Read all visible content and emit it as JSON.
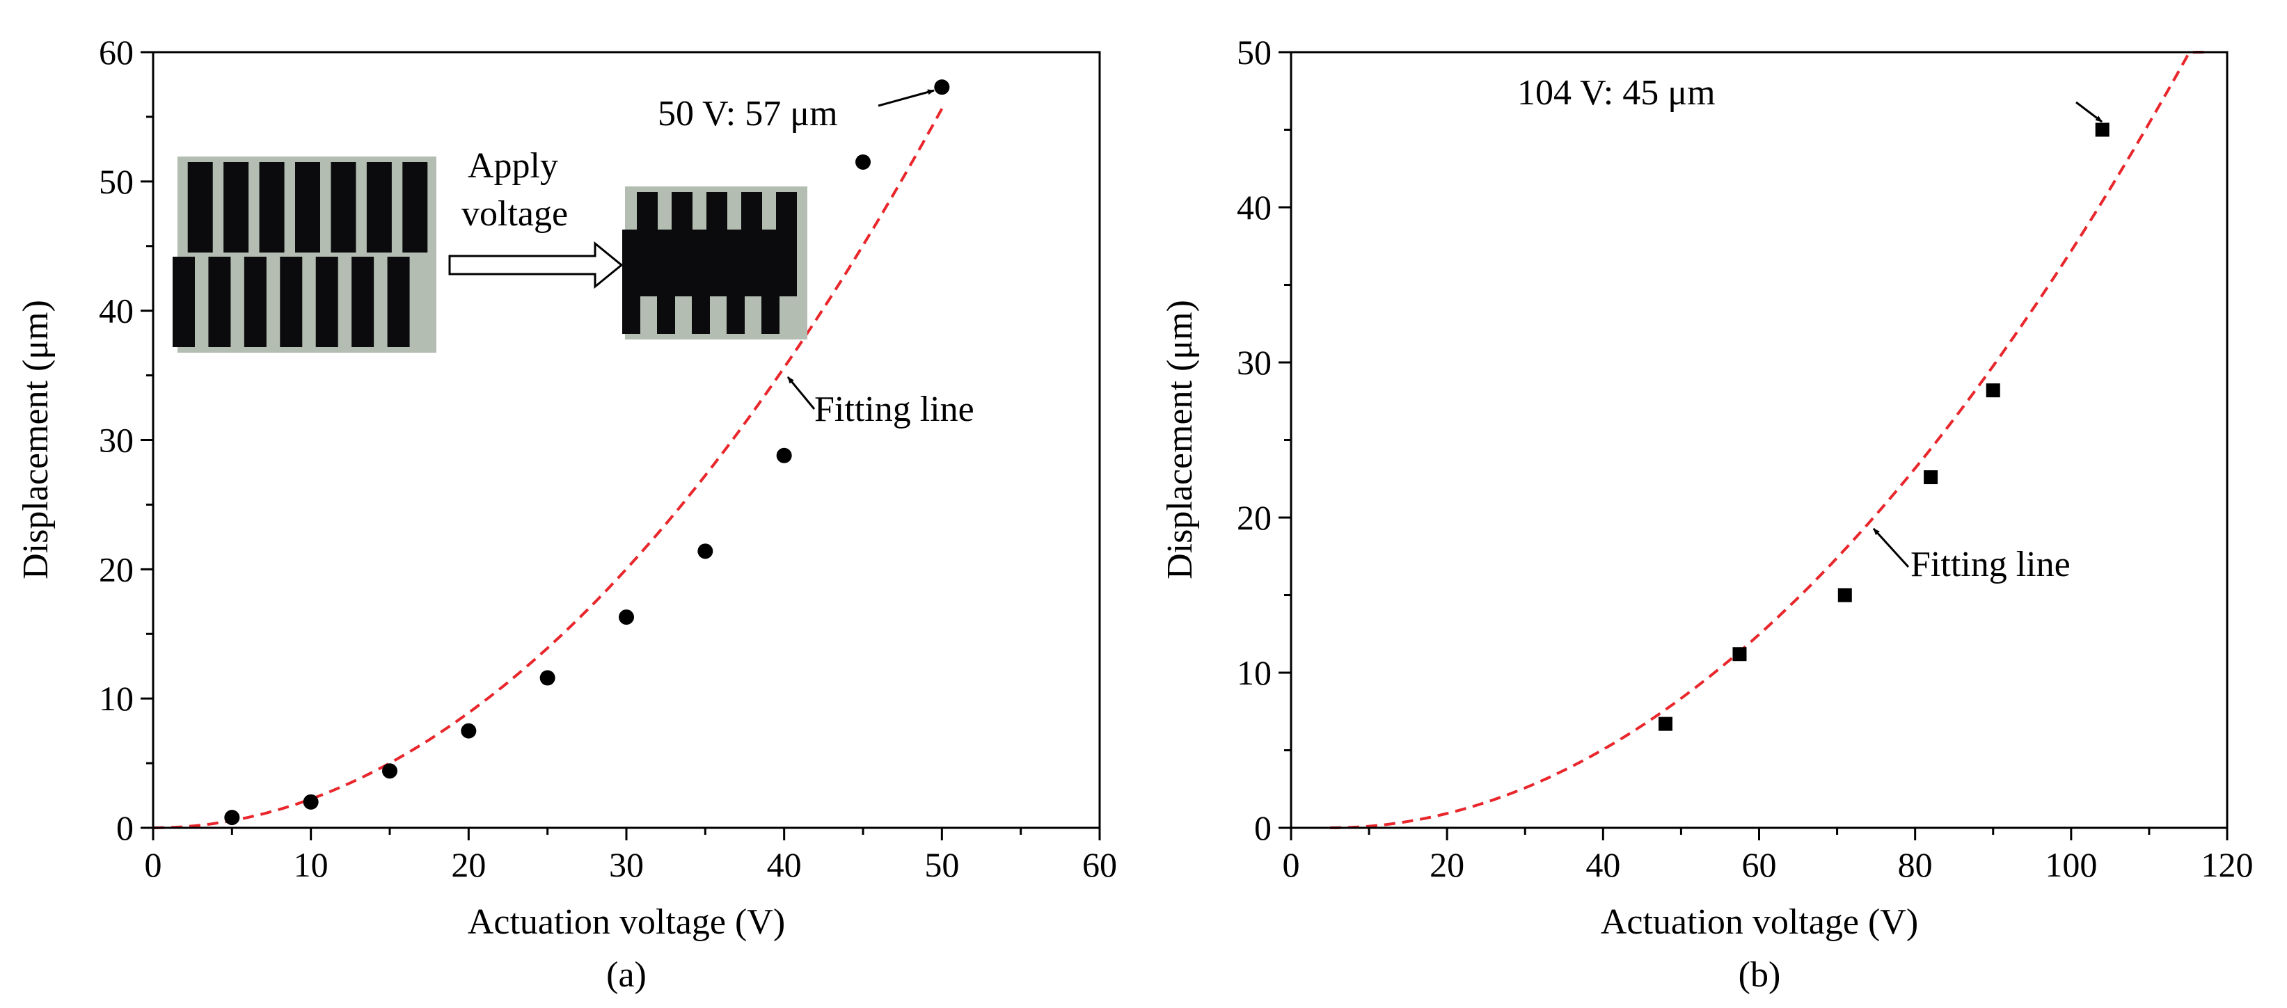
{
  "chart_data": [
    {
      "type": "scatter",
      "panel_label": "(a)",
      "xlabel": "Actuation voltage (V)",
      "ylabel": "Displacement (μm)",
      "xlim": [
        0,
        60
      ],
      "ylim": [
        0,
        60
      ],
      "xticks": [
        0,
        10,
        20,
        30,
        40,
        50,
        60
      ],
      "yticks": [
        0,
        10,
        20,
        30,
        40,
        50,
        60
      ],
      "marker": "circle",
      "series": [
        {
          "x": [
            5,
            10,
            15,
            20,
            25,
            30,
            35,
            40,
            45,
            50
          ],
          "y": [
            0.8,
            2.0,
            4.4,
            7.5,
            11.6,
            16.3,
            21.4,
            28.8,
            51.5,
            57.3
          ]
        }
      ],
      "fit_curve": {
        "style": "dashed",
        "color": "#e8262b",
        "coefficient": 0.02225,
        "exponent": 2,
        "x_range": [
          0,
          50
        ]
      },
      "annotations": [
        {
          "text": "50 V: 57 μm",
          "target": [
            50,
            57.3
          ]
        },
        {
          "text": "Fitting line",
          "target": [
            40.5,
            35.5
          ]
        },
        {
          "text": "Apply",
          "role": "inset-arrow-label"
        },
        {
          "text": "voltage",
          "role": "inset-arrow-label"
        }
      ],
      "inset": {
        "description": "comb-drive micrographs before and after voltage"
      }
    },
    {
      "type": "scatter",
      "panel_label": "(b)",
      "xlabel": "Actuation voltage (V)",
      "ylabel": "Displacement (μm)",
      "xlim": [
        0,
        120
      ],
      "ylim": [
        0,
        50
      ],
      "xticks": [
        0,
        20,
        40,
        60,
        80,
        100,
        120
      ],
      "yticks": [
        0,
        10,
        20,
        30,
        40,
        50
      ],
      "marker": "square",
      "series": [
        {
          "x": [
            48,
            57.5,
            71,
            82,
            90,
            104
          ],
          "y": [
            6.7,
            11.2,
            15.0,
            22.6,
            28.2,
            45.0
          ]
        }
      ],
      "fit_curve": {
        "style": "dashed",
        "color": "#e8262b",
        "x0": 5,
        "coefficient": 0.00412,
        "exponent": 2,
        "x_range": [
          5,
          117
        ]
      },
      "annotations": [
        {
          "text": "104 V: 45 μm",
          "target": [
            104,
            45
          ]
        },
        {
          "text": "Fitting line",
          "target": [
            73,
            19
          ]
        }
      ]
    }
  ]
}
